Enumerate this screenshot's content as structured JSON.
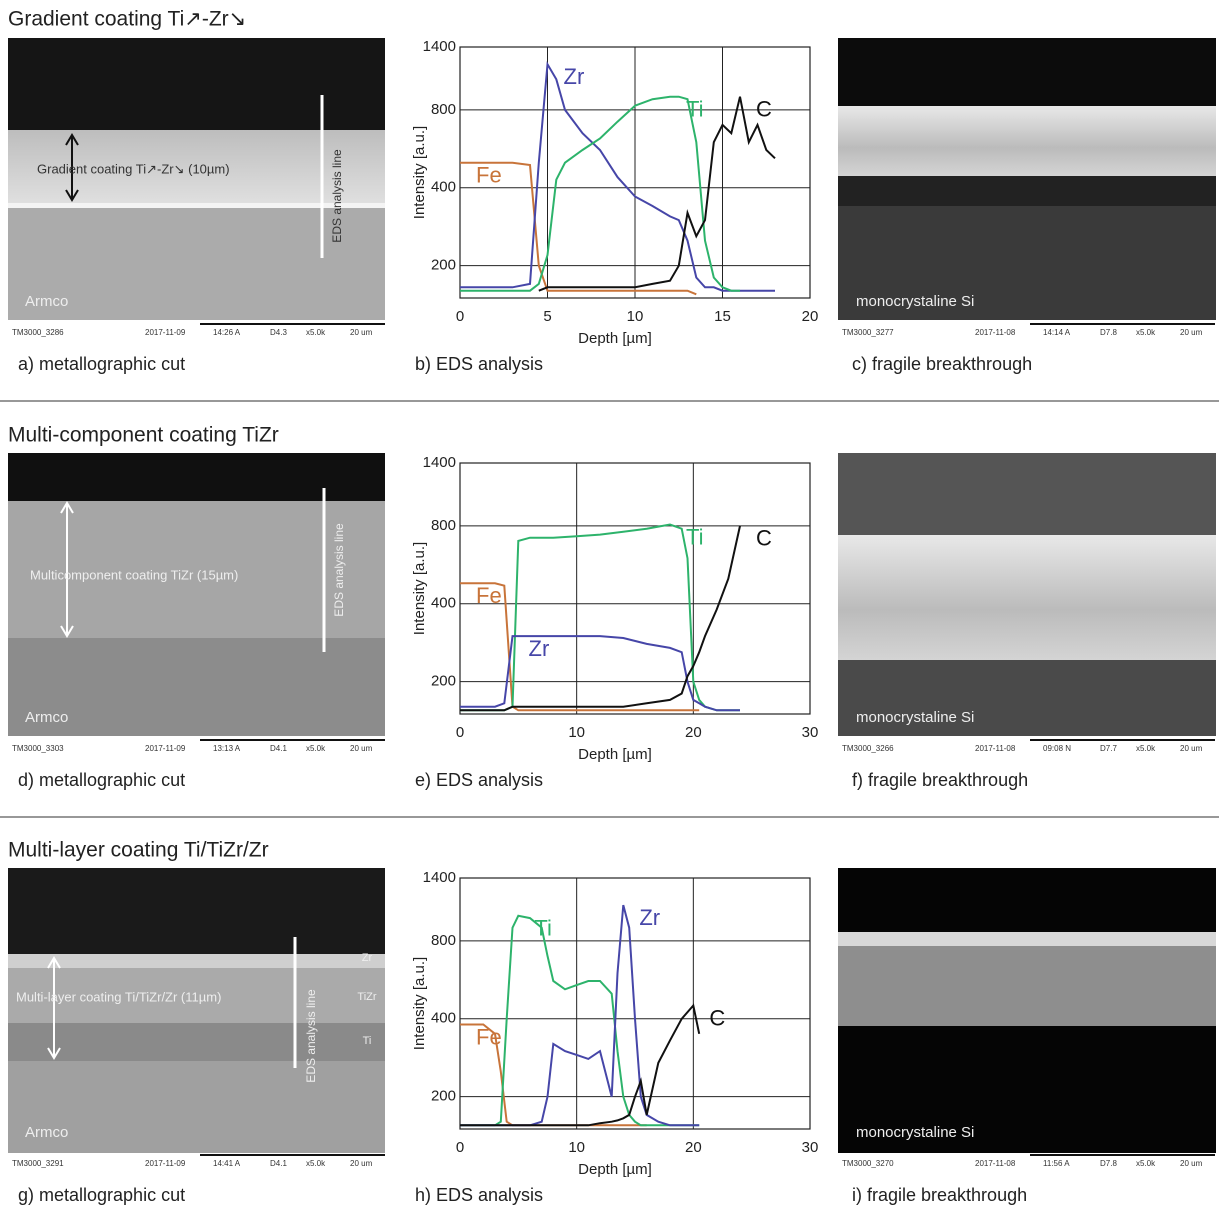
{
  "sections": [
    {
      "title": "Gradient coating Ti↗-Zr↘",
      "cut": {
        "caption": "a) metallographic cut",
        "coating": "Gradient coating Ti↗-Zr↘ (10µm)",
        "eds_line": "EDS analysis line",
        "substrate": "Armco",
        "footer": [
          "TM3000_3286",
          "2017-11-09",
          "14:26 A",
          "D4.3",
          "x5.0k",
          "20 um"
        ]
      },
      "eds_caption": "b) EDS analysis",
      "fracture": {
        "caption": "c) fragile breakthrough",
        "substrate": "monocrystaline Si",
        "footer": [
          "TM3000_3277",
          "2017-11-08",
          "14:14 A",
          "D7.8",
          "x5.0k",
          "20 um"
        ]
      }
    },
    {
      "title": "Multi-component coating TiZr",
      "cut": {
        "caption": "d) metallographic cut",
        "coating": "Multicomponent coating TiZr (15µm)",
        "eds_line": "EDS analysis line",
        "substrate": "Armco",
        "footer": [
          "TM3000_3303",
          "2017-11-09",
          "13:13 A",
          "D4.1",
          "x5.0k",
          "20 um"
        ]
      },
      "eds_caption": "e) EDS analysis",
      "fracture": {
        "caption": "f) fragile breakthrough",
        "substrate": "monocrystaline Si",
        "footer": [
          "TM3000_3266",
          "2017-11-08",
          "09:08 N",
          "D7.7",
          "x5.0k",
          "20 um"
        ]
      }
    },
    {
      "title": "Multi-layer coating Ti/TiZr/Zr",
      "cut": {
        "caption": "g) metallographic cut",
        "coating": "Multi-layer coating Ti/TiZr/Zr (11µm)",
        "eds_line": "EDS analysis line",
        "substrate": "Armco",
        "layers": [
          "Zr",
          "TiZr",
          "Ti"
        ],
        "footer": [
          "TM3000_3291",
          "2017-11-09",
          "14:41 A",
          "D4.1",
          "x5.0k",
          "20 um"
        ]
      },
      "eds_caption": "h) EDS analysis",
      "fracture": {
        "caption": "i) fragile breakthrough",
        "substrate": "monocrystaline Si",
        "footer": [
          "TM3000_3270",
          "2017-11-08",
          "11:56 A",
          "D7.8",
          "x5.0k",
          "20 um"
        ]
      }
    }
  ],
  "chart_data": [
    {
      "type": "line",
      "xlabel": "Depth [µm]",
      "ylabel": "Intensity [a.u.]",
      "log_y": true,
      "grid": true,
      "xlim": [
        0,
        20
      ],
      "xticks": [
        0,
        5,
        10,
        15,
        20
      ],
      "ylim": [
        150,
        1400
      ],
      "yticks": [
        200,
        400,
        800,
        1400
      ],
      "x": [
        0,
        1,
        2,
        3,
        4,
        4.5,
        5,
        5.5,
        6,
        7,
        8,
        9,
        10,
        11,
        12,
        12.5,
        13,
        13.5,
        14,
        14.5,
        15,
        15.5,
        16,
        16.5,
        17,
        17.5,
        18
      ],
      "series": [
        {
          "name": "Fe",
          "color": "#c8743a",
          "values": [
            500,
            500,
            500,
            500,
            490,
            200,
            160,
            160,
            160,
            160,
            160,
            160,
            160,
            160,
            160,
            160,
            160,
            155,
            null,
            null,
            null,
            null,
            null,
            null,
            null,
            null,
            null
          ]
        },
        {
          "name": "Zr",
          "color": "#4646a8",
          "values": [
            165,
            165,
            165,
            165,
            170,
            500,
            1200,
            1050,
            800,
            650,
            560,
            440,
            370,
            340,
            310,
            300,
            250,
            180,
            165,
            165,
            160,
            160,
            160,
            160,
            160,
            160,
            160
          ]
        },
        {
          "name": "Ti",
          "color": "#2db36b",
          "values": [
            160,
            160,
            160,
            160,
            160,
            170,
            220,
            430,
            500,
            560,
            620,
            720,
            830,
            880,
            900,
            900,
            880,
            600,
            250,
            180,
            165,
            160,
            160,
            null,
            null,
            null,
            null
          ]
        },
        {
          "name": "C",
          "color": "#111111",
          "values": [
            null,
            null,
            null,
            null,
            null,
            160,
            165,
            165,
            165,
            165,
            165,
            165,
            165,
            170,
            175,
            200,
            320,
            260,
            300,
            600,
            700,
            650,
            900,
            600,
            700,
            560,
            520
          ]
        }
      ]
    },
    {
      "type": "line",
      "xlabel": "Depth [µm]",
      "ylabel": "Intensity [a.u.]",
      "log_y": true,
      "grid": true,
      "xlim": [
        0,
        30
      ],
      "xticks": [
        0,
        10,
        20,
        30
      ],
      "ylim": [
        150,
        1400
      ],
      "yticks": [
        200,
        400,
        800,
        1400
      ],
      "x": [
        0,
        1,
        2,
        3,
        3.8,
        4.5,
        5,
        6,
        8,
        10,
        12,
        14,
        16,
        18,
        19,
        19.5,
        20,
        20.5,
        21,
        22,
        23,
        24
      ],
      "series": [
        {
          "name": "Fe",
          "color": "#c8743a",
          "values": [
            480,
            480,
            480,
            480,
            470,
            160,
            155,
            155,
            155,
            155,
            155,
            155,
            155,
            155,
            155,
            155,
            155,
            155,
            null,
            null,
            null,
            null
          ]
        },
        {
          "name": "Ti",
          "color": "#2db36b",
          "values": [
            155,
            155,
            155,
            155,
            155,
            160,
            700,
            720,
            720,
            730,
            740,
            760,
            780,
            810,
            780,
            600,
            200,
            170,
            160,
            155,
            155,
            155
          ]
        },
        {
          "name": "Zr",
          "color": "#4646a8",
          "values": [
            160,
            160,
            160,
            160,
            165,
            300,
            300,
            300,
            300,
            300,
            300,
            295,
            280,
            270,
            260,
            200,
            170,
            165,
            160,
            155,
            155,
            155
          ]
        },
        {
          "name": "C",
          "color": "#111111",
          "values": [
            155,
            155,
            155,
            155,
            155,
            160,
            160,
            160,
            160,
            160,
            160,
            160,
            165,
            170,
            180,
            210,
            230,
            260,
            300,
            380,
            500,
            800
          ]
        }
      ]
    },
    {
      "type": "line",
      "xlabel": "Depth [µm]",
      "ylabel": "Intensity [a.u.]",
      "log_y": true,
      "grid": true,
      "xlim": [
        0,
        30
      ],
      "xticks": [
        0,
        10,
        20,
        30
      ],
      "ylim": [
        150,
        1400
      ],
      "yticks": [
        200,
        400,
        800,
        1400
      ],
      "x": [
        0,
        1,
        2,
        3,
        3.5,
        4,
        4.5,
        5,
        6,
        7,
        7.5,
        8,
        9,
        10,
        11,
        12,
        13,
        13.5,
        14,
        14.5,
        15,
        15.5,
        16,
        17,
        18,
        19,
        20,
        20.5
      ],
      "series": [
        {
          "name": "Fe",
          "color": "#c8743a",
          "values": [
            380,
            380,
            380,
            350,
            250,
            160,
            155,
            155,
            155,
            155,
            155,
            155,
            155,
            155,
            155,
            155,
            155,
            155,
            155,
            155,
            155,
            155,
            155,
            null,
            null,
            null,
            null,
            null
          ]
        },
        {
          "name": "Ti",
          "color": "#2db36b",
          "values": [
            155,
            155,
            155,
            155,
            160,
            400,
            900,
            1000,
            980,
            900,
            700,
            560,
            520,
            540,
            560,
            560,
            500,
            300,
            200,
            170,
            160,
            155,
            155,
            155,
            155,
            155,
            155,
            155
          ]
        },
        {
          "name": "Zr",
          "color": "#4646a8",
          "values": [
            155,
            155,
            155,
            155,
            155,
            155,
            155,
            155,
            155,
            160,
            200,
            320,
            300,
            290,
            280,
            300,
            200,
            600,
            1100,
            900,
            400,
            200,
            170,
            160,
            155,
            155,
            155,
            155
          ]
        },
        {
          "name": "C",
          "color": "#111111",
          "values": [
            155,
            155,
            155,
            155,
            155,
            155,
            155,
            155,
            155,
            155,
            155,
            155,
            155,
            155,
            155,
            158,
            160,
            162,
            165,
            170,
            200,
            230,
            170,
            270,
            330,
            400,
            450,
            350
          ]
        }
      ]
    }
  ]
}
